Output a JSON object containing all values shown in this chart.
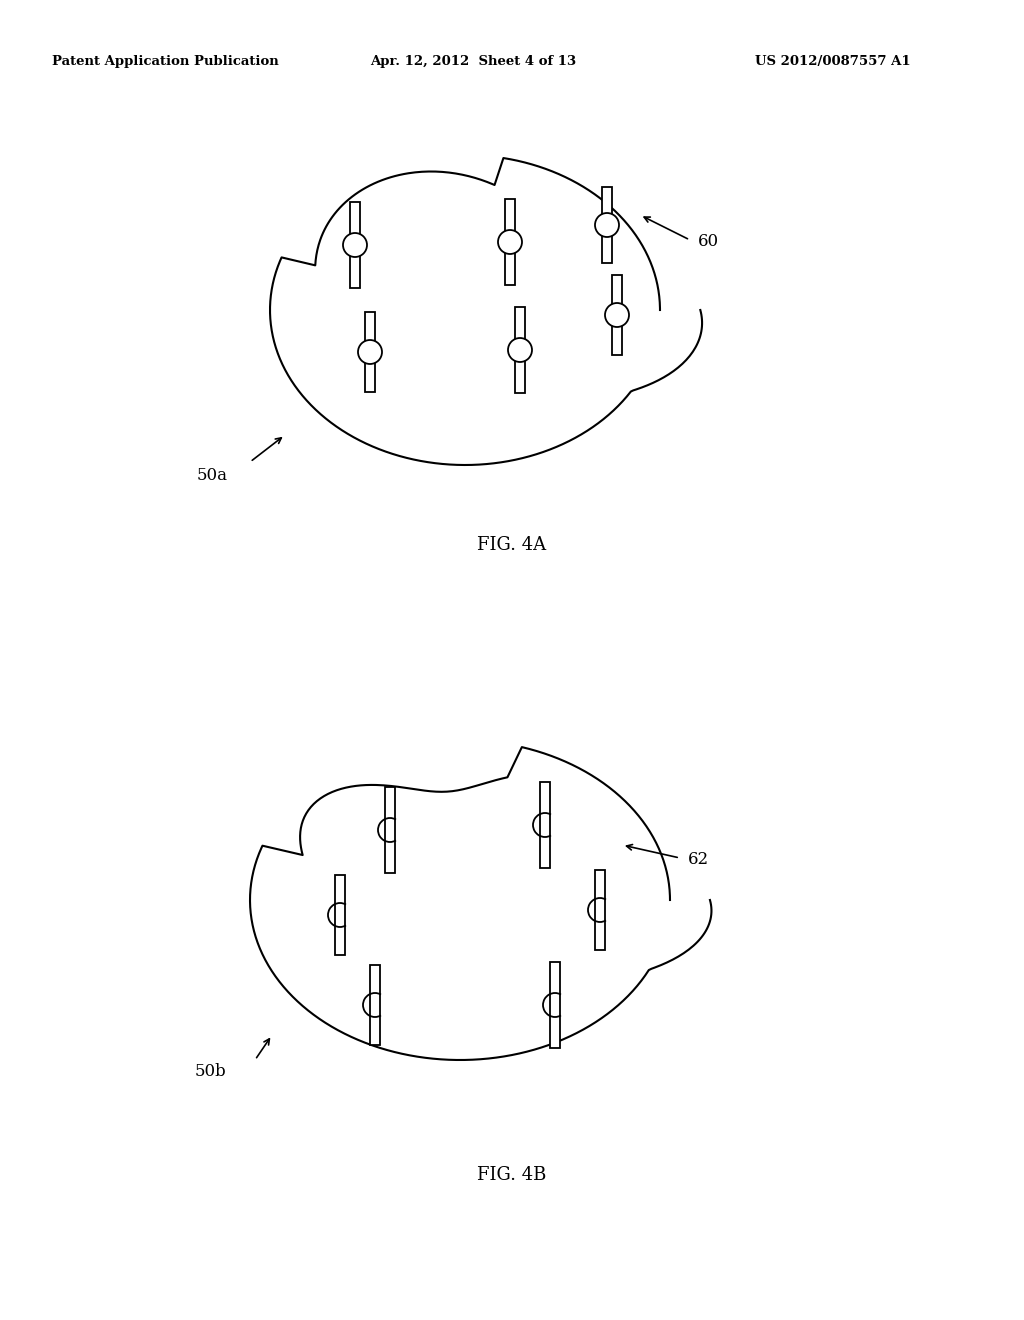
{
  "background_color": "#ffffff",
  "header_left": "Patent Application Publication",
  "header_center": "Apr. 12, 2012  Sheet 4 of 13",
  "header_right": "US 2012/0087557 A1",
  "fig4a_label": "FIG. 4A",
  "fig4b_label": "FIG. 4B",
  "label_50a": "50a",
  "label_50b": "50b",
  "label_60": "60",
  "label_62": "62"
}
